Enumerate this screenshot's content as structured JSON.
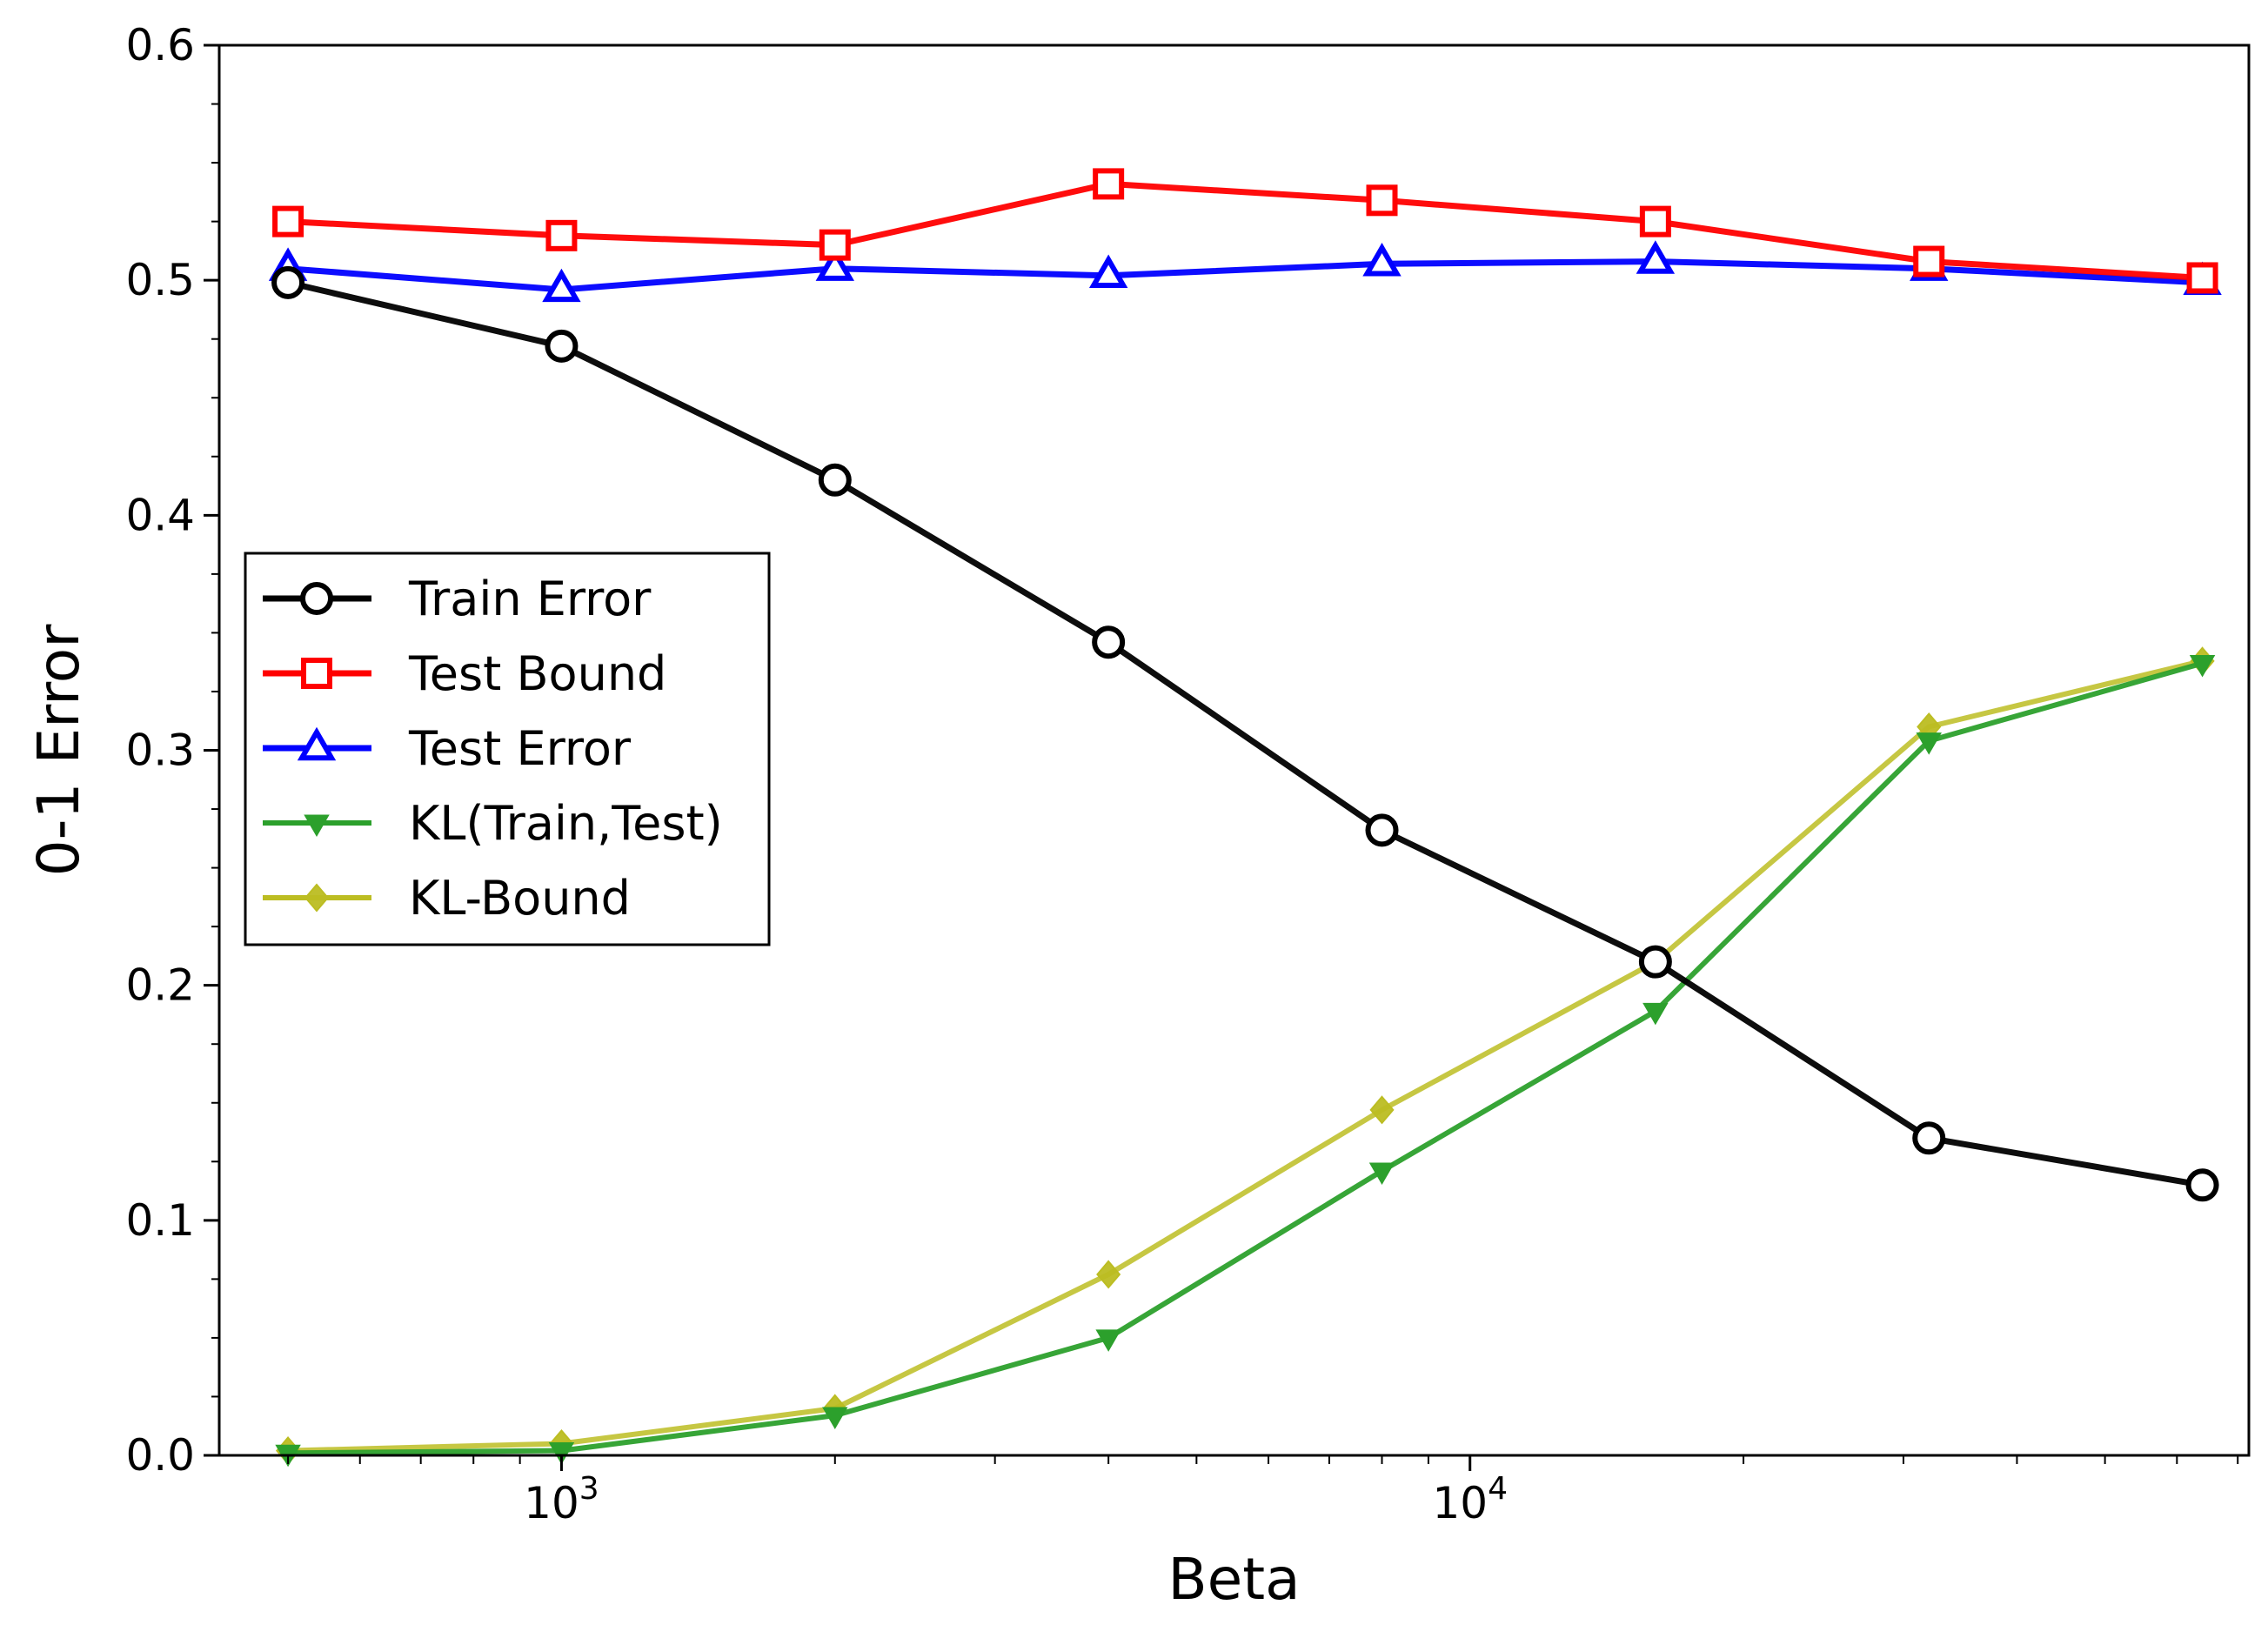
{
  "chart_data": {
    "type": "line",
    "title": "",
    "xlabel": "Beta",
    "ylabel": "0-1 Error",
    "xscale": "log",
    "xlim": [
      420,
      72000
    ],
    "ylim": [
      0,
      0.6
    ],
    "x": [
      500,
      1000,
      2000,
      4000,
      8000,
      16000,
      32000,
      64000
    ],
    "yticks": [
      "0.0",
      "0.1",
      "0.2",
      "0.3",
      "0.4",
      "0.5",
      "0.6"
    ],
    "xticks": [
      {
        "value": 1000,
        "base": "10",
        "exp": "3"
      },
      {
        "value": 10000,
        "base": "10",
        "exp": "4"
      }
    ],
    "grid": false,
    "legend_position": "center-left",
    "series": [
      {
        "name": "Train Error",
        "color": "#000000",
        "marker": "circle",
        "values": [
          0.499,
          0.472,
          0.415,
          0.346,
          0.266,
          0.21,
          0.135,
          0.115
        ]
      },
      {
        "name": "Test Bound",
        "color": "#ff0000",
        "marker": "square",
        "values": [
          0.525,
          0.519,
          0.515,
          0.541,
          0.534,
          0.525,
          0.508,
          0.501
        ]
      },
      {
        "name": "Test Error",
        "color": "#0000ff",
        "marker": "triangle-up",
        "values": [
          0.505,
          0.496,
          0.505,
          0.502,
          0.507,
          0.508,
          0.505,
          0.499
        ]
      },
      {
        "name": "KL(Train,Test)",
        "color": "#2ca02c",
        "marker": "triangle-down",
        "values": [
          0.001,
          0.002,
          0.017,
          0.05,
          0.121,
          0.189,
          0.304,
          0.337
        ]
      },
      {
        "name": "KL-Bound",
        "color": "#bcbd22",
        "marker": "diamond",
        "values": [
          0.002,
          0.005,
          0.02,
          0.077,
          0.147,
          0.21,
          0.31,
          0.338
        ]
      }
    ]
  }
}
